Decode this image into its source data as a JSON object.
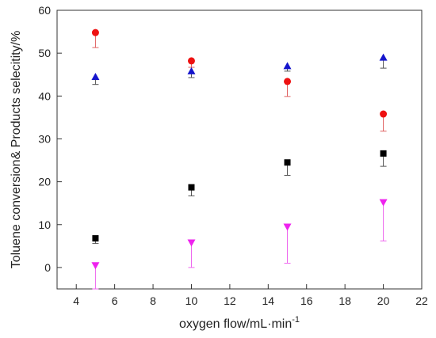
{
  "chart_data": {
    "type": "scatter",
    "title": "",
    "xlabel": "oxygen flow/mL·min",
    "xlabel_sup": "-1",
    "ylabel": "Toluene conversion& Products selecitity/%",
    "xlim": [
      3,
      22
    ],
    "ylim": [
      -5,
      60
    ],
    "xticks": [
      4,
      6,
      8,
      10,
      12,
      14,
      16,
      18,
      20,
      22
    ],
    "yticks": [
      0,
      10,
      20,
      30,
      40,
      50,
      60
    ],
    "grid": false,
    "legend": "none",
    "series": [
      {
        "marker": "square",
        "color": "#000000",
        "err_color": "#555555",
        "x": [
          5,
          10,
          15,
          20
        ],
        "y": [
          6.8,
          18.7,
          24.5,
          26.6
        ],
        "err": [
          1.2,
          2.0,
          3.0,
          3.0
        ]
      },
      {
        "marker": "circle",
        "color": "#ee1111",
        "err_color": "#e06060",
        "x": [
          5,
          10,
          15,
          20
        ],
        "y": [
          54.8,
          48.2,
          43.4,
          35.8
        ],
        "err": [
          3.5,
          1.5,
          3.5,
          4.0
        ]
      },
      {
        "marker": "triangle-up",
        "color": "#1515cc",
        "err_color": "#555555",
        "x": [
          5,
          10,
          15,
          20
        ],
        "y": [
          44.5,
          45.8,
          47.0,
          49.0
        ],
        "err": [
          1.8,
          1.5,
          1.2,
          2.5
        ]
      },
      {
        "marker": "triangle-down",
        "color": "#ee22ee",
        "err_color": "#ee66ee",
        "x": [
          5,
          10,
          15,
          20
        ],
        "y": [
          0.5,
          5.8,
          9.5,
          15.2
        ],
        "err": [
          5.5,
          5.8,
          8.5,
          9.0
        ]
      }
    ]
  }
}
